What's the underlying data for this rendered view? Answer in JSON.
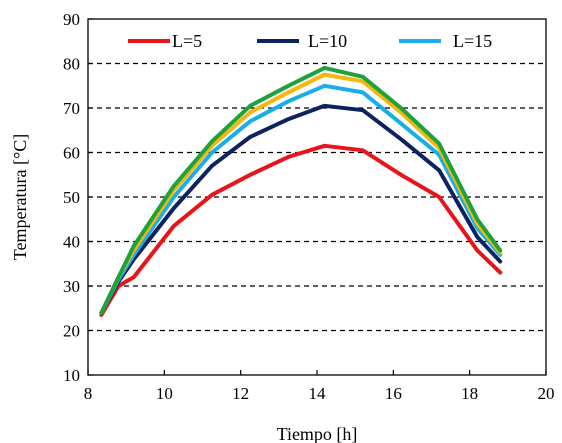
{
  "chart_data": {
    "type": "line",
    "title": "",
    "xlabel": "Tiempo [h]",
    "ylabel": "Temperatura [°C]",
    "xlim": [
      8,
      20
    ],
    "ylim": [
      10,
      90
    ],
    "xticks": [
      8,
      10,
      12,
      14,
      16,
      18,
      20
    ],
    "yticks": [
      10,
      20,
      30,
      40,
      50,
      60,
      70,
      80,
      90
    ],
    "xtick_labels": [
      "8",
      "10",
      "12",
      "14",
      "16",
      "18",
      "20"
    ],
    "ytick_labels": [
      "10",
      "20",
      "30",
      "40",
      "50",
      "60",
      "70",
      "80",
      "90"
    ],
    "grid": "horizontal dashed",
    "legend_position": "top",
    "series": [
      {
        "name": "L=5",
        "color": "#e8141b",
        "x": [
          8.35,
          8.8,
          9.2,
          10.25,
          11.25,
          12.25,
          13.25,
          14.2,
          15.2,
          16.2,
          17.2,
          18.2,
          18.8
        ],
        "y": [
          23.5,
          30,
          32,
          43.5,
          50.5,
          55,
          59,
          61.5,
          60.5,
          55,
          50,
          38,
          33
        ]
      },
      {
        "name": "L=10",
        "color": "#0d2260",
        "x": [
          8.35,
          8.8,
          9.2,
          10.25,
          11.25,
          12.25,
          13.25,
          14.2,
          15.2,
          16.2,
          17.2,
          18.2,
          18.8
        ],
        "y": [
          24,
          31,
          36,
          47.5,
          57,
          63.5,
          67.5,
          70.5,
          69.5,
          63,
          56,
          41,
          35.5
        ]
      },
      {
        "name": "L=15",
        "color": "#19aee8",
        "x": [
          8.35,
          8.8,
          9.2,
          10.25,
          11.25,
          12.25,
          13.25,
          14.2,
          15.2,
          16.2,
          17.2,
          18.2,
          18.8
        ],
        "y": [
          24,
          31.5,
          37,
          50,
          60,
          67,
          71.5,
          75,
          73.5,
          66.5,
          59.5,
          43,
          37
        ]
      },
      {
        "name": "",
        "color": "#f5b60f",
        "x": [
          8.35,
          8.8,
          9.2,
          10.25,
          11.25,
          12.25,
          13.25,
          14.2,
          15.2,
          16.2,
          17.2,
          18.2,
          18.8
        ],
        "y": [
          24,
          32,
          38,
          51.5,
          61.5,
          69,
          73.5,
          77.5,
          76,
          69,
          61,
          44,
          37.5
        ]
      },
      {
        "name": "",
        "color": "#1ea23b",
        "x": [
          8.35,
          8.8,
          9.2,
          10.25,
          11.25,
          12.25,
          13.25,
          14.2,
          15.2,
          16.2,
          17.2,
          18.2,
          18.8
        ],
        "y": [
          24,
          32,
          39,
          52.5,
          62.5,
          70.5,
          75,
          79,
          77,
          70,
          62,
          45,
          38
        ]
      }
    ]
  }
}
